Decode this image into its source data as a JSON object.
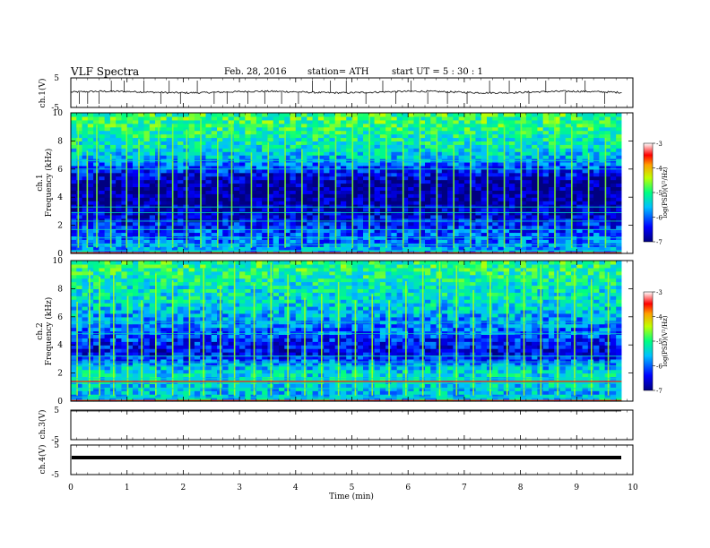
{
  "header": {
    "title": "VLF  Spectra",
    "date": "Feb. 28,  2016",
    "station": "station= ATH",
    "start": "start  UT  =    5  : 30 : 1"
  },
  "chart_data": [
    {
      "type": "line",
      "panel": "ch1-voltage",
      "ylabel": "ch.1(V)",
      "yticks": [
        "5",
        "-5"
      ],
      "ylim": [
        -5,
        5
      ],
      "x_range": [
        0,
        9.8
      ],
      "baseline": 0.2,
      "spikes_min": [
        0.15,
        0.3,
        0.5,
        0.72,
        0.95,
        1.3,
        1.6,
        1.75,
        1.95,
        2.25,
        2.55,
        2.78,
        3.15,
        3.45,
        3.75,
        4.05,
        4.3,
        4.62,
        4.9,
        5.25,
        5.55,
        5.78,
        6.05,
        6.35,
        6.7,
        7.05,
        7.45,
        7.8,
        8.15,
        8.45,
        8.8,
        9.15,
        9.5
      ]
    },
    {
      "type": "heatmap",
      "panel": "ch1-spectrogram",
      "ylabel": "ch.1\nFrequency  (kHz)",
      "yticks": [
        "0",
        "2",
        "4",
        "6",
        "8",
        "10"
      ],
      "ylim": [
        0,
        10
      ],
      "colorbar": {
        "label": "log(PSD)(V²/Hz)",
        "ticks": [
          "-3",
          "-4",
          "-5",
          "-6",
          "-7"
        ],
        "range": [
          -7,
          -3
        ]
      },
      "row_profile_khz": [
        0,
        0.5,
        1.0,
        1.5,
        2.0,
        2.5,
        3.0,
        3.5,
        4.0,
        4.5,
        5.0,
        5.5,
        6.0,
        6.5,
        7.0,
        7.5,
        8.0,
        8.5,
        9.0,
        9.5,
        10.0
      ],
      "row_profile_logpsd": [
        -5.6,
        -5.8,
        -6.0,
        -6.1,
        -6.3,
        -6.5,
        -6.7,
        -6.8,
        -6.9,
        -6.9,
        -6.8,
        -6.6,
        -6.2,
        -5.8,
        -5.5,
        -5.3,
        -5.2,
        -5.1,
        -5.0,
        -4.9,
        -4.9
      ],
      "tone_lines_khz": [
        0.2,
        0.6,
        1.1,
        1.7,
        2.3,
        2.9,
        3.3,
        6.0,
        6.6
      ],
      "strong_lines_khz": [
        0.05
      ],
      "bursts_min": [
        0.12,
        0.28,
        0.45,
        0.7,
        0.98,
        1.2,
        1.55,
        1.8,
        2.05,
        2.3,
        2.6,
        2.85,
        3.2,
        3.5,
        3.8,
        4.1,
        4.4,
        4.7,
        5.0,
        5.3,
        5.6,
        5.9,
        6.2,
        6.5,
        6.8,
        7.1,
        7.4,
        7.7,
        8.0,
        8.3,
        8.6,
        8.9,
        9.2,
        9.5
      ]
    },
    {
      "type": "heatmap",
      "panel": "ch2-spectrogram",
      "ylabel": "ch.2\nFrequency  (kHz)",
      "yticks": [
        "0",
        "2",
        "4",
        "6",
        "8",
        "10"
      ],
      "ylim": [
        0,
        10
      ],
      "colorbar": {
        "label": "log(PSD)(V²/Hz)",
        "ticks": [
          "-3",
          "-4",
          "-5",
          "-6",
          "-7"
        ],
        "range": [
          -7,
          -3
        ]
      },
      "row_profile_khz": [
        0,
        0.5,
        1.0,
        1.5,
        2.0,
        2.5,
        3.0,
        3.5,
        4.0,
        4.5,
        5.0,
        5.5,
        6.0,
        6.5,
        7.0,
        7.5,
        8.0,
        8.5,
        9.0,
        9.5,
        10.0
      ],
      "row_profile_logpsd": [
        -5.4,
        -5.6,
        -5.5,
        -5.3,
        -5.4,
        -5.6,
        -6.2,
        -6.5,
        -6.4,
        -6.2,
        -6.0,
        -5.8,
        -5.7,
        -5.5,
        -5.4,
        -5.3,
        -5.3,
        -5.2,
        -5.1,
        -5.0,
        -5.0
      ],
      "tone_lines_khz": [
        0.3,
        0.9,
        1.3,
        1.6,
        2.5,
        2.8,
        3.2,
        4.8,
        5.6
      ],
      "strong_lines_khz": [
        0.05,
        1.4
      ],
      "bursts_min": [
        0.1,
        0.32,
        0.5,
        0.75,
        1.0,
        1.25,
        1.5,
        1.8,
        2.1,
        2.35,
        2.65,
        2.9,
        3.25,
        3.55,
        3.85,
        4.15,
        4.45,
        4.75,
        5.05,
        5.35,
        5.65,
        5.95,
        6.25,
        6.55,
        6.85,
        7.15,
        7.45,
        7.75,
        8.05,
        8.35,
        8.65,
        8.95,
        9.25,
        9.55
      ]
    },
    {
      "type": "line",
      "panel": "ch3-voltage",
      "ylabel": "ch.3(V)",
      "yticks": [
        "5",
        "-5"
      ],
      "ylim": [
        -5,
        5
      ],
      "x_range": [
        0,
        9.8
      ],
      "baseline": 5
    },
    {
      "type": "line",
      "panel": "ch4-voltage",
      "ylabel": "ch.4(V)",
      "yticks": [
        "5",
        "-5"
      ],
      "ylim": [
        -5,
        5
      ],
      "x_range": [
        0,
        9.8
      ],
      "baseline": 0
    }
  ],
  "xaxis": {
    "label": "Time  (min)",
    "ticks": [
      "0",
      "1",
      "2",
      "3",
      "4",
      "5",
      "6",
      "7",
      "8",
      "9",
      "10"
    ],
    "range": [
      0,
      10
    ]
  }
}
